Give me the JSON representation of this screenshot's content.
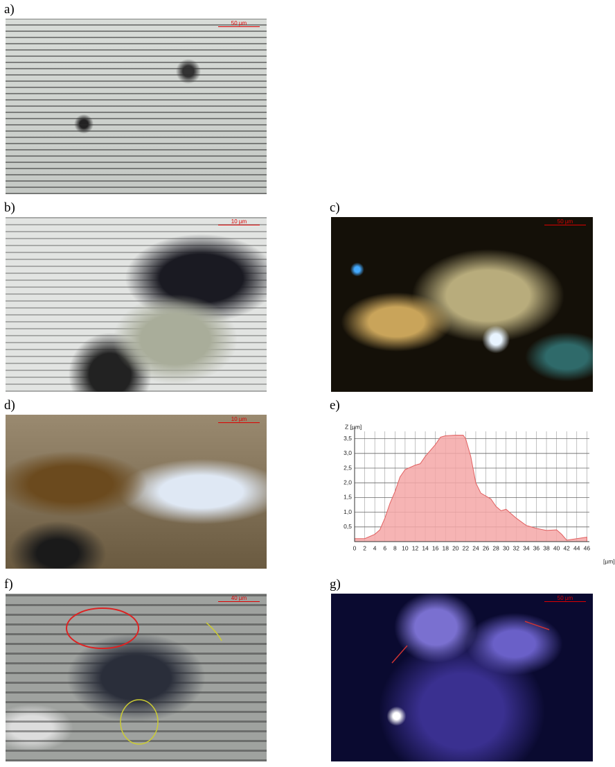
{
  "panels": [
    {
      "label": "a)",
      "scale": "50 µm"
    },
    {
      "label": "b)",
      "scale": "10 µm"
    },
    {
      "label": "c)",
      "scale": "50 µm"
    },
    {
      "label": "d)",
      "scale": "10 µm"
    },
    {
      "label": "e)"
    },
    {
      "label": "f)",
      "scale": "40 µm"
    },
    {
      "label": "g)",
      "scale": "50 µm"
    }
  ],
  "chart_data": {
    "type": "area",
    "y_label": "Z [µm]",
    "x_label": "[µm]",
    "color": "#f4a7a7",
    "line_color": "#e06060",
    "x": [
      0,
      2,
      4,
      5,
      6,
      7,
      8,
      9,
      10,
      12,
      13,
      14,
      16,
      17,
      18,
      20,
      21.5,
      22,
      23,
      24,
      25,
      26,
      27,
      28,
      29,
      30,
      31,
      32,
      34,
      36,
      38,
      40,
      41,
      42,
      44,
      46
    ],
    "values": [
      0.1,
      0.1,
      0.25,
      0.4,
      0.8,
      1.3,
      1.7,
      2.2,
      2.45,
      2.6,
      2.65,
      2.9,
      3.3,
      3.55,
      3.6,
      3.62,
      3.62,
      3.5,
      2.9,
      2.0,
      1.65,
      1.55,
      1.45,
      1.2,
      1.05,
      1.1,
      0.95,
      0.8,
      0.55,
      0.45,
      0.38,
      0.4,
      0.25,
      0.05,
      0.1,
      0.15
    ],
    "xlim": [
      0,
      46.5
    ],
    "ylim": [
      0,
      3.75
    ],
    "xticks": [
      0,
      2,
      4,
      6,
      8,
      10,
      12,
      14,
      16,
      18,
      20,
      22,
      24,
      26,
      28,
      30,
      32,
      34,
      36,
      38,
      40,
      42,
      44,
      46
    ],
    "yticks": [
      {
        "value": 0.5,
        "label": "0,5"
      },
      {
        "value": 1.0,
        "label": "1,0"
      },
      {
        "value": 1.5,
        "label": "1,5"
      },
      {
        "value": 2.0,
        "label": "2,0"
      },
      {
        "value": 2.5,
        "label": "2,5"
      },
      {
        "value": 3.0,
        "label": "3,0"
      },
      {
        "value": 3.5,
        "label": "3,5"
      }
    ],
    "grid": true
  }
}
